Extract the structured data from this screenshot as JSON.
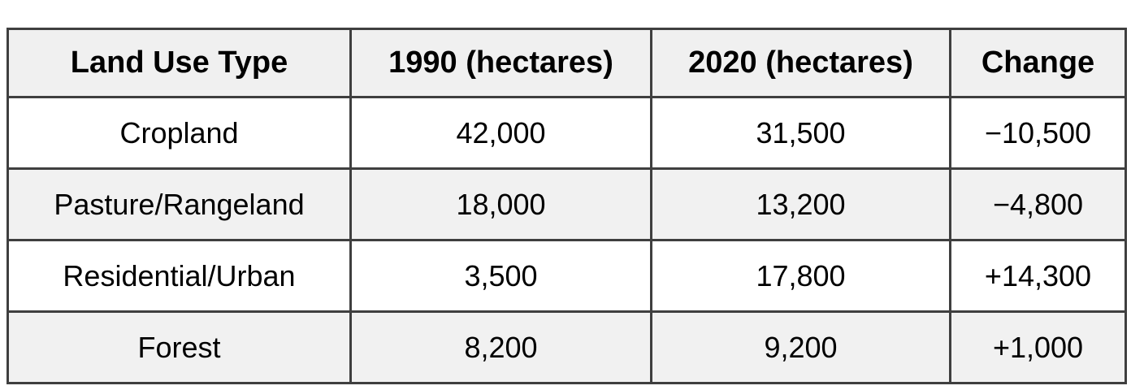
{
  "table": {
    "columns": {
      "land_use": "Land Use Type",
      "y1990": "1990 (hectares)",
      "y2020": "2020 (hectares)",
      "change": "Change"
    },
    "rows": [
      {
        "land_use": "Cropland",
        "y1990": "42,000",
        "y2020": "31,500",
        "change": "−10,500"
      },
      {
        "land_use": "Pasture/Rangeland",
        "y1990": "18,000",
        "y2020": "13,200",
        "change": "−4,800"
      },
      {
        "land_use": "Residential/Urban",
        "y1990": "3,500",
        "y2020": "17,800",
        "change": "+14,300"
      },
      {
        "land_use": "Forest",
        "y1990": "8,200",
        "y2020": "9,200",
        "change": "+1,000"
      }
    ]
  },
  "chart_data": {
    "type": "table",
    "title": "",
    "columns": [
      "Land Use Type",
      "1990 (hectares)",
      "2020 (hectares)",
      "Change"
    ],
    "rows": [
      [
        "Cropland",
        42000,
        31500,
        -10500
      ],
      [
        "Pasture/Rangeland",
        18000,
        13200,
        -4800
      ],
      [
        "Residential/Urban",
        3500,
        17800,
        14300
      ],
      [
        "Forest",
        8200,
        9200,
        1000
      ]
    ]
  },
  "colors": {
    "header_bg": "#f0f0f0",
    "stripe_bg": "#f1f1f1",
    "row_bg": "#ffffff",
    "border": "#3f3f3f",
    "text": "#000000"
  }
}
